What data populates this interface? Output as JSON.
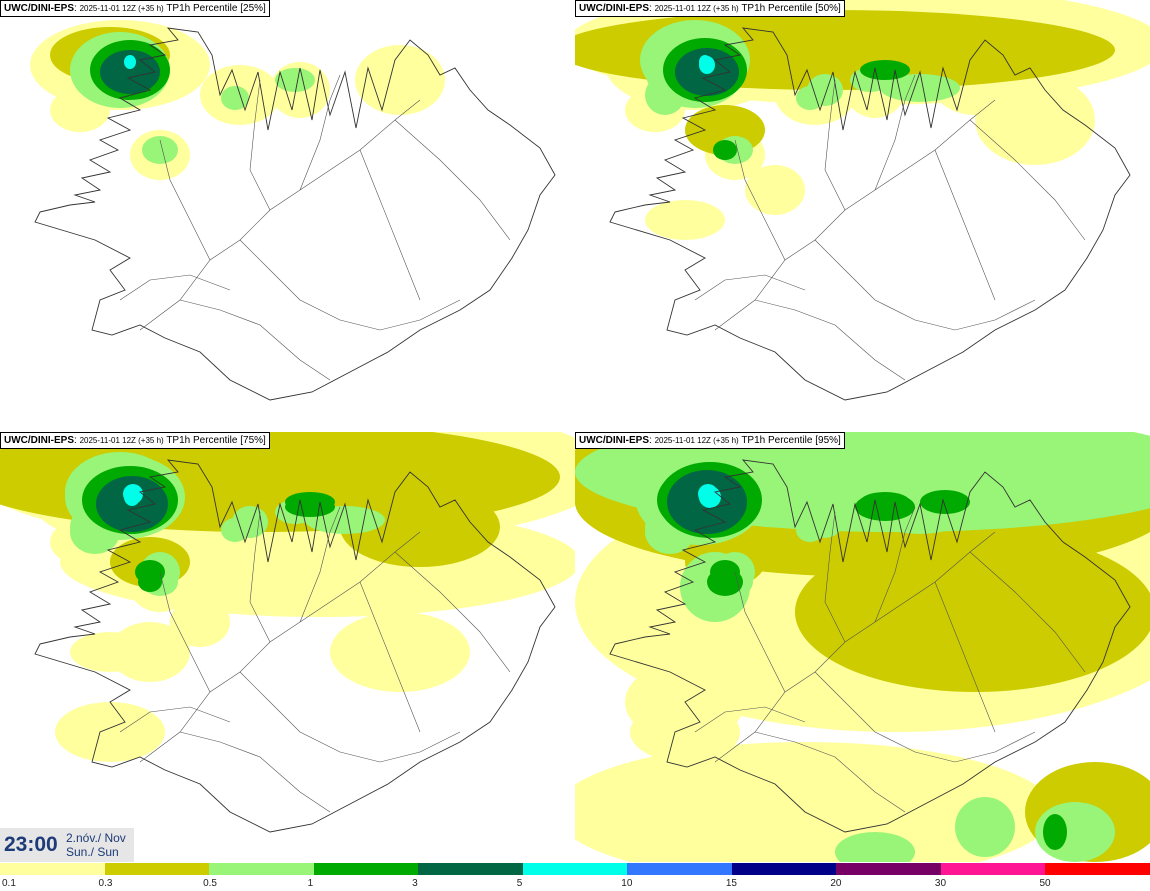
{
  "panels": [
    {
      "model": "UWC/DINI-EPS",
      "meta": "2025-11-01 12Z (+35 h)",
      "label": "TP1h Percentile [25%]",
      "level": 1
    },
    {
      "model": "UWC/DINI-EPS",
      "meta": "2025-11-01 12Z (+35 h)",
      "label": "TP1h Percentile [50%]",
      "level": 2
    },
    {
      "model": "UWC/DINI-EPS",
      "meta": "2025-11-01 12Z (+35 h)",
      "label": "TP1h Percentile [75%]",
      "level": 3
    },
    {
      "model": "UWC/DINI-EPS",
      "meta": "2025-11-01 12Z (+35 h)",
      "label": "TP1h Percentile [95%]",
      "level": 4
    }
  ],
  "time": {
    "time": "23:00",
    "date_local": "2.nóv./ Nov",
    "day_local": "Sun./ Sun"
  },
  "legend": {
    "colors": [
      "#ffff9e",
      "#cccc00",
      "#98f578",
      "#00aa00",
      "#006644",
      "#00ffe8",
      "#3377ff",
      "#000088",
      "#770066",
      "#ff1493",
      "#ff0000"
    ],
    "labels": [
      "0.1",
      "0.3",
      "0.5",
      "1",
      "3",
      "5",
      "10",
      "15",
      "20",
      "30",
      "50"
    ]
  }
}
